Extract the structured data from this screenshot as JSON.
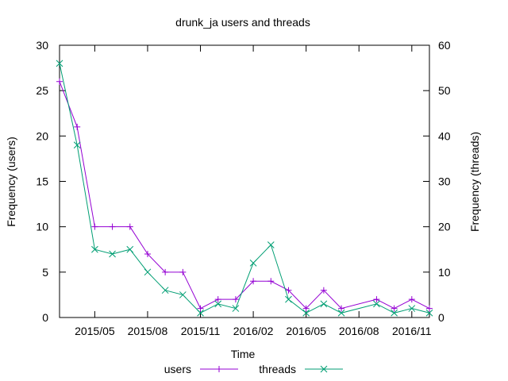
{
  "chart_data": {
    "type": "line",
    "title": "drunk_ja users and threads",
    "xlabel": "Time",
    "ylabel_left": "Frequency (users)",
    "ylabel_right": "Frequency (threads)",
    "x_tick_labels": [
      "2015/05",
      "2015/08",
      "2015/11",
      "2016/02",
      "2016/05",
      "2016/08",
      "2016/11"
    ],
    "y_left_ticks": [
      "0",
      "5",
      "10",
      "15",
      "20",
      "25",
      "30"
    ],
    "y_right_ticks": [
      "0",
      "10",
      "20",
      "30",
      "40",
      "50",
      "60"
    ],
    "ylim_left": [
      0,
      30
    ],
    "ylim_right": [
      0,
      60
    ],
    "grid": false,
    "legend_position": "bottom-center",
    "series": [
      {
        "name": "users",
        "axis": "left",
        "color": "#9400d3",
        "marker": "plus",
        "points": [
          [
            "2015/03",
            26
          ],
          [
            "2015/04",
            21
          ],
          [
            "2015/05",
            10
          ],
          [
            "2015/06",
            10
          ],
          [
            "2015/07",
            10
          ],
          [
            "2015/08",
            7
          ],
          [
            "2015/09",
            5
          ],
          [
            "2015/10",
            5
          ],
          [
            "2015/11",
            1
          ],
          [
            "2015/12",
            2
          ],
          [
            "2016/01",
            2
          ],
          [
            "2016/02",
            4
          ],
          [
            "2016/03",
            4
          ],
          [
            "2016/04",
            3
          ],
          [
            "2016/05",
            1
          ],
          [
            "2016/06",
            3
          ],
          [
            "2016/07",
            1
          ],
          [
            "2016/09",
            2
          ],
          [
            "2016/10",
            1
          ],
          [
            "2016/11",
            2
          ],
          [
            "2016/12",
            1
          ]
        ]
      },
      {
        "name": "threads",
        "axis": "right",
        "color": "#009e73",
        "marker": "cross",
        "points": [
          [
            "2015/03",
            56
          ],
          [
            "2015/04",
            38
          ],
          [
            "2015/05",
            15
          ],
          [
            "2015/06",
            14
          ],
          [
            "2015/07",
            15
          ],
          [
            "2015/08",
            10
          ],
          [
            "2015/09",
            6
          ],
          [
            "2015/10",
            5
          ],
          [
            "2015/11",
            1
          ],
          [
            "2015/12",
            3
          ],
          [
            "2016/01",
            2
          ],
          [
            "2016/02",
            12
          ],
          [
            "2016/03",
            16
          ],
          [
            "2016/04",
            4
          ],
          [
            "2016/05",
            1
          ],
          [
            "2016/06",
            3
          ],
          [
            "2016/07",
            1
          ],
          [
            "2016/09",
            3
          ],
          [
            "2016/10",
            1
          ],
          [
            "2016/11",
            2
          ],
          [
            "2016/12",
            1
          ]
        ]
      }
    ]
  }
}
